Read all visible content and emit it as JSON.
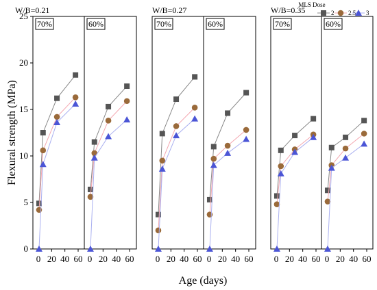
{
  "chart_data": {
    "type": "line",
    "ylabel": "Flexural  strength (MPa)",
    "xlabel": "Age (days)",
    "ylim": [
      0,
      25
    ],
    "yticks": [
      0,
      5,
      10,
      15,
      20,
      25
    ],
    "xticks": [
      0,
      20,
      40,
      60
    ],
    "legend": {
      "title": "MLS Dose",
      "placement": "top-right",
      "entries": [
        "2",
        "2.5",
        "3"
      ],
      "colors": [
        "#555555",
        "#9a6a3a",
        "#4b55d6"
      ],
      "markers": [
        "square",
        "circle",
        "triangle"
      ]
    },
    "line_colors": [
      "#888888",
      "#f4a7b0",
      "#aab0f0"
    ],
    "groups": [
      {
        "label": "W/B=0.21",
        "panels": [
          0,
          1
        ]
      },
      {
        "label": "W/B=0.27",
        "panels": [
          2,
          3
        ]
      },
      {
        "label": "W/B=0.35",
        "panels": [
          4,
          5
        ]
      }
    ],
    "panels": [
      {
        "label": "70%",
        "x": [
          1,
          7,
          28,
          56
        ],
        "series": [
          {
            "name": "2",
            "values": [
              4.9,
              12.5,
              16.2,
              18.7
            ]
          },
          {
            "name": "2.5",
            "values": [
              4.2,
              10.6,
              14.2,
              16.3
            ]
          },
          {
            "name": "3",
            "values": [
              0,
              9.1,
              13.6,
              15.6
            ]
          }
        ]
      },
      {
        "label": "60%",
        "x": [
          1,
          7,
          28,
          56
        ],
        "series": [
          {
            "name": "2",
            "values": [
              6.4,
              11.5,
              15.3,
              17.5
            ]
          },
          {
            "name": "2.5",
            "values": [
              5.6,
              10.3,
              13.8,
              15.9
            ]
          },
          {
            "name": "3",
            "values": [
              0,
              9.8,
              12.1,
              13.9
            ]
          }
        ]
      },
      {
        "label": "70%",
        "x": [
          1,
          7,
          28,
          56
        ],
        "series": [
          {
            "name": "2",
            "values": [
              3.7,
              12.4,
              16.1,
              18.5
            ]
          },
          {
            "name": "2.5",
            "values": [
              2.0,
              9.5,
              13.2,
              15.2
            ]
          },
          {
            "name": "3",
            "values": [
              0,
              8.6,
              12.2,
              14.0
            ]
          }
        ]
      },
      {
        "label": "60%",
        "x": [
          1,
          7,
          28,
          56
        ],
        "series": [
          {
            "name": "2",
            "values": [
              5.3,
              11.0,
              14.6,
              16.8
            ]
          },
          {
            "name": "2.5",
            "values": [
              3.7,
              9.7,
              11.1,
              12.8
            ]
          },
          {
            "name": "3",
            "values": [
              0,
              9.0,
              10.3,
              11.8
            ]
          }
        ]
      },
      {
        "label": "70%",
        "x": [
          1,
          7,
          28,
          56
        ],
        "series": [
          {
            "name": "2",
            "values": [
              5.7,
              10.6,
              12.2,
              14.0
            ]
          },
          {
            "name": "2.5",
            "values": [
              4.8,
              8.9,
              10.7,
              12.3
            ]
          },
          {
            "name": "3",
            "values": [
              0,
              8.1,
              10.4,
              12.0
            ]
          }
        ]
      },
      {
        "label": "60%",
        "x": [
          1,
          7,
          28,
          56
        ],
        "series": [
          {
            "name": "2",
            "values": [
              6.3,
              10.9,
              12.0,
              13.8
            ]
          },
          {
            "name": "2.5",
            "values": [
              5.1,
              9.0,
              10.8,
              12.4
            ]
          },
          {
            "name": "3",
            "values": [
              0,
              8.7,
              9.8,
              11.3
            ]
          }
        ]
      }
    ]
  }
}
